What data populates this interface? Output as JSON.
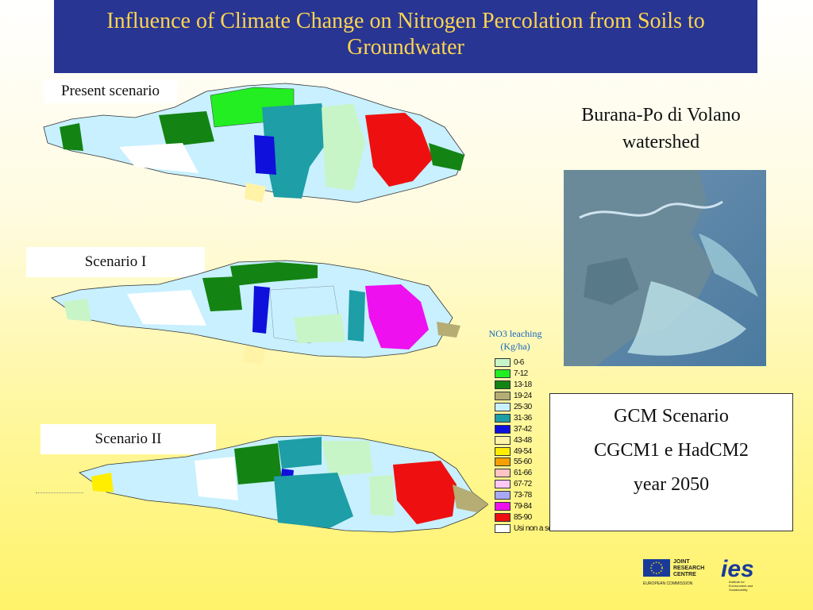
{
  "title": "Influence of Climate Change on Nitrogen Percolation from Soils to Groundwater",
  "scenarios": {
    "present": "Present scenario",
    "s1": "Scenario I",
    "s2": "Scenario II"
  },
  "region": [
    "Burana-Po di Volano",
    "watershed"
  ],
  "gcm": [
    "GCM Scenario",
    "CGCM1 e HadCM2",
    "year 2050"
  ],
  "legend": {
    "title": [
      "NO3 leaching",
      "(Kg/ha)"
    ],
    "items": [
      {
        "label": "0-6",
        "color": "#c8f5c8"
      },
      {
        "label": "7-12",
        "color": "#22ee22"
      },
      {
        "label": "13-18",
        "color": "#138413"
      },
      {
        "label": "19-24",
        "color": "#b5ad74"
      },
      {
        "label": "25-30",
        "color": "#c8f0ff"
      },
      {
        "label": "31-36",
        "color": "#1e9ea6"
      },
      {
        "label": "37-42",
        "color": "#1010dd"
      },
      {
        "label": "43-48",
        "color": "#fff3a8"
      },
      {
        "label": "49-54",
        "color": "#ffee00"
      },
      {
        "label": "55-60",
        "color": "#f5a000"
      },
      {
        "label": "61-66",
        "color": "#ffc4c4"
      },
      {
        "label": "67-72",
        "color": "#ffc8f5"
      },
      {
        "label": "73-78",
        "color": "#a8a8f5"
      },
      {
        "label": "79-84",
        "color": "#ee10ee"
      },
      {
        "label": "85-90",
        "color": "#ee1010"
      },
      {
        "label": "Usi non a seminativo",
        "color": "#ffffff"
      }
    ]
  },
  "logos": {
    "jrc": [
      "JOINT",
      "RESEARCH",
      "CENTRE"
    ],
    "ec": "EUROPEAN COMMISSION",
    "ies": "ies",
    "ies_sub": [
      "Institute for",
      "Environment and",
      "Sustainability"
    ]
  }
}
